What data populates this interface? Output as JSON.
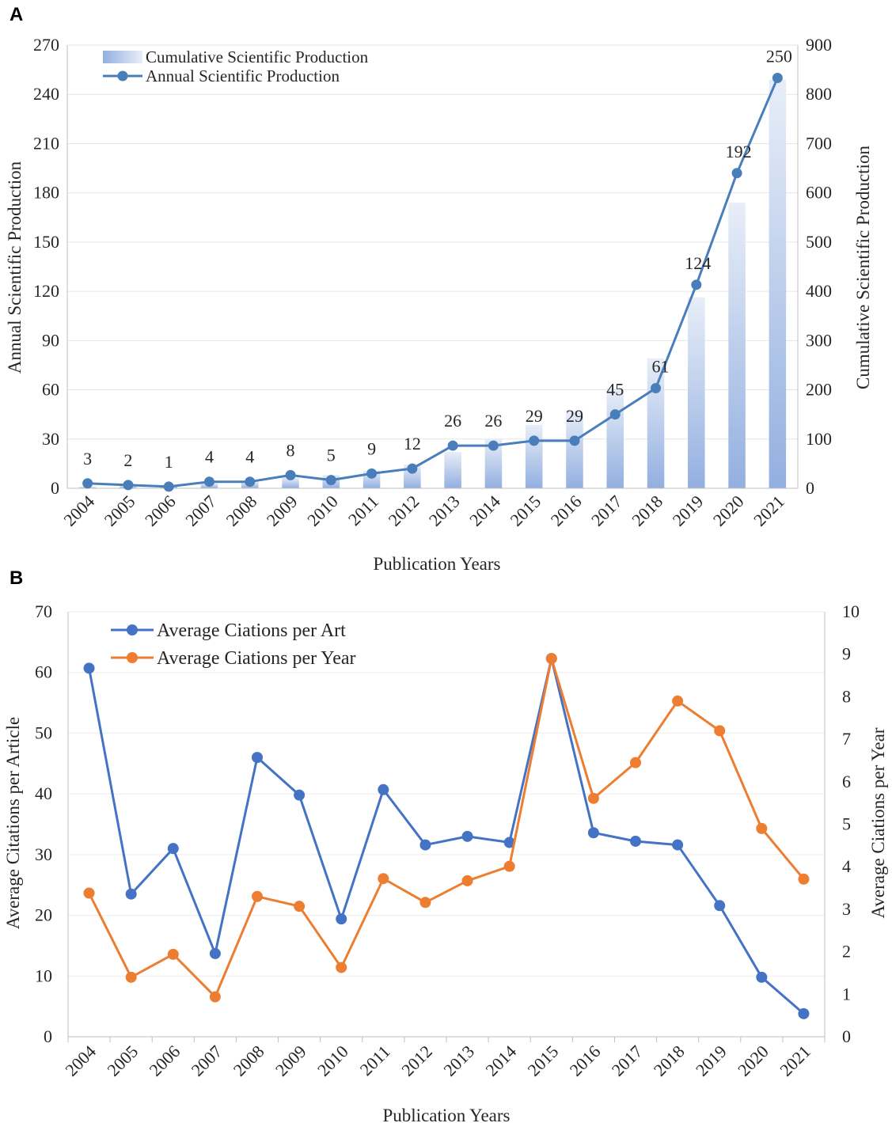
{
  "chart_data": [
    {
      "panel": "A",
      "type": "bar+line",
      "categories": [
        "2004",
        "2005",
        "2006",
        "2007",
        "2008",
        "2009",
        "2010",
        "2011",
        "2012",
        "2013",
        "2014",
        "2015",
        "2016",
        "2017",
        "2018",
        "2019",
        "2020",
        "2021"
      ],
      "series": [
        {
          "name": "Cumulative Scientific Production",
          "type": "bar",
          "axis": "right",
          "values": [
            3,
            5,
            6,
            10,
            14,
            22,
            27,
            36,
            48,
            74,
            100,
            129,
            158,
            203,
            264,
            388,
            580,
            830
          ]
        },
        {
          "name": "Annual Scientific Production",
          "type": "line",
          "axis": "left",
          "values": [
            3,
            2,
            1,
            4,
            4,
            8,
            5,
            9,
            12,
            26,
            26,
            29,
            29,
            45,
            61,
            124,
            192,
            250
          ],
          "labels": [
            "3",
            "2",
            "1",
            "4",
            "4",
            "8",
            "5",
            "9",
            "12",
            "26",
            "26",
            "29",
            "29",
            "45",
            "61",
            "124",
            "192",
            "250"
          ]
        }
      ],
      "xlabel": "Publication Years",
      "ylabel": "Annual Scientific Production",
      "y2label": "Cumulative Scientific Production",
      "ylim": [
        0,
        270
      ],
      "y2lim": [
        0,
        900
      ],
      "yticks": [
        "0",
        "30",
        "60",
        "90",
        "120",
        "150",
        "180",
        "210",
        "240",
        "270"
      ],
      "y2ticks": [
        "0",
        "100",
        "200",
        "300",
        "400",
        "500",
        "600",
        "700",
        "800",
        "900"
      ],
      "legend_position": "top-left",
      "colors": {
        "line": "#4a7ebb",
        "bar_top": "#e6ecf7",
        "bar_bottom": "#93afe0"
      }
    },
    {
      "panel": "B",
      "type": "line",
      "categories": [
        "2004",
        "2005",
        "2006",
        "2007",
        "2008",
        "2009",
        "2010",
        "2011",
        "2012",
        "2013",
        "2014",
        "2015",
        "2016",
        "2017",
        "2018",
        "2019",
        "2020",
        "2021"
      ],
      "series": [
        {
          "name": "Average Ciations per Art",
          "axis": "left",
          "values": [
            60.7,
            23.5,
            31,
            13.7,
            46,
            39.8,
            19.4,
            40.7,
            31.6,
            33,
            32,
            62.3,
            33.6,
            32.2,
            31.6,
            21.6,
            9.8,
            3.8
          ]
        },
        {
          "name": "Average Ciations per Year",
          "axis": "right",
          "values": [
            3.38,
            1.4,
            1.94,
            0.94,
            3.3,
            3.07,
            1.63,
            3.72,
            3.16,
            3.67,
            4.01,
            8.9,
            5.61,
            6.45,
            7.9,
            7.2,
            4.9,
            3.71
          ]
        }
      ],
      "xlabel": "Publication Years",
      "ylabel": "Average Citations per Article",
      "y2label": "Average Ciations per Year",
      "ylim": [
        0,
        70
      ],
      "y2lim": [
        0,
        10
      ],
      "yticks": [
        "0",
        "10",
        "20",
        "30",
        "40",
        "50",
        "60",
        "70"
      ],
      "y2ticks": [
        "0",
        "1",
        "2",
        "3",
        "4",
        "5",
        "6",
        "7",
        "8",
        "9",
        "10"
      ],
      "legend_position": "top-left",
      "colors": {
        "art": "#4472c4",
        "year": "#ed7d31"
      }
    }
  ],
  "panel_labels": {
    "a": "A",
    "b": "B"
  }
}
